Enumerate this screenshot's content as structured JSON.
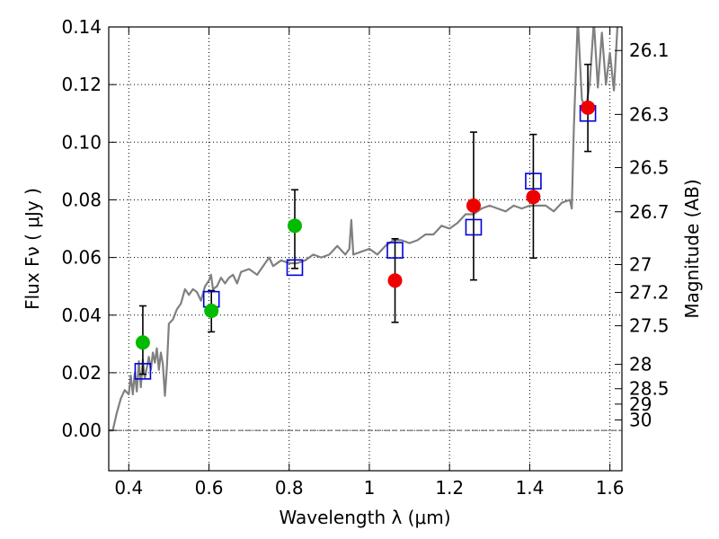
{
  "chart_data": {
    "type": "scatter",
    "xlabel": "Wavelength  λ (μm)",
    "ylabel": "Flux  Fν  ( μJy )",
    "ylabel_right": "Magnitude (AB)",
    "xlim": [
      0.35,
      1.63
    ],
    "ylim": [
      -0.014,
      0.14
    ],
    "x_ticks": [
      0.4,
      0.6,
      0.8,
      1.0,
      1.2,
      1.4,
      1.6
    ],
    "x_tick_labels": [
      "0.4",
      "0.6",
      "0.8",
      "1",
      "1.2",
      "1.4",
      "1.6"
    ],
    "y_ticks": [
      0.0,
      0.02,
      0.04,
      0.06,
      0.08,
      0.1,
      0.12,
      0.14
    ],
    "y_tick_labels": [
      "0.00",
      "0.02",
      "0.04",
      "0.06",
      "0.08",
      "0.10",
      "0.12",
      "0.14"
    ],
    "right_ticks": [
      "26.1",
      "26.3",
      "26.5",
      "26.7",
      "27",
      "27.2",
      "27.5",
      "28",
      "28.5",
      "29",
      "30"
    ],
    "grid": true,
    "colors": {
      "model": "#808080",
      "green": "#00bb00",
      "red": "#ee0000",
      "square": "#0000dd",
      "errorbar": "#000000",
      "zero_line": "#555555"
    },
    "series": [
      {
        "name": "green-points",
        "marker": "circle",
        "color": "#00bb00",
        "x": [
          0.435,
          0.606,
          0.814
        ],
        "y": [
          0.0305,
          0.0415,
          0.071
        ]
      },
      {
        "name": "red-points",
        "marker": "circle",
        "color": "#ee0000",
        "x": [
          1.064,
          1.26,
          1.409,
          1.545
        ],
        "y": [
          0.052,
          0.078,
          0.081,
          0.112
        ]
      },
      {
        "name": "model-squares",
        "marker": "square",
        "color": "#0000dd",
        "x": [
          0.435,
          0.606,
          0.814,
          1.064,
          1.26,
          1.409,
          1.545
        ],
        "y": [
          0.0205,
          0.0455,
          0.0565,
          0.0625,
          0.0705,
          0.0865,
          0.11
        ]
      }
    ],
    "error_bars": [
      {
        "x": 0.435,
        "low": 0.0195,
        "high": 0.0432
      },
      {
        "x": 0.606,
        "low": 0.0342,
        "high": 0.0485
      },
      {
        "x": 0.814,
        "low": 0.0562,
        "high": 0.0835
      },
      {
        "x": 1.064,
        "low": 0.0375,
        "high": 0.0665
      },
      {
        "x": 1.26,
        "low": 0.0522,
        "high": 0.1035
      },
      {
        "x": 1.409,
        "low": 0.0598,
        "high": 0.1027
      },
      {
        "x": 1.545,
        "low": 0.0968,
        "high": 0.127
      }
    ],
    "model_spectrum": {
      "x": [
        0.35,
        0.36,
        0.37,
        0.38,
        0.39,
        0.4,
        0.405,
        0.41,
        0.415,
        0.42,
        0.425,
        0.43,
        0.435,
        0.44,
        0.45,
        0.455,
        0.46,
        0.465,
        0.47,
        0.475,
        0.48,
        0.485,
        0.49,
        0.495,
        0.5,
        0.51,
        0.52,
        0.53,
        0.54,
        0.55,
        0.56,
        0.57,
        0.58,
        0.59,
        0.6,
        0.605,
        0.61,
        0.62,
        0.63,
        0.64,
        0.65,
        0.66,
        0.67,
        0.68,
        0.7,
        0.72,
        0.74,
        0.75,
        0.76,
        0.78,
        0.8,
        0.82,
        0.84,
        0.86,
        0.88,
        0.9,
        0.92,
        0.94,
        0.95,
        0.955,
        0.96,
        0.98,
        1.0,
        1.02,
        1.04,
        1.06,
        1.08,
        1.1,
        1.12,
        1.14,
        1.16,
        1.18,
        1.2,
        1.22,
        1.24,
        1.26,
        1.28,
        1.3,
        1.32,
        1.34,
        1.36,
        1.38,
        1.4,
        1.42,
        1.44,
        1.46,
        1.48,
        1.5,
        1.505,
        1.51,
        1.52,
        1.53,
        1.54,
        1.55,
        1.56,
        1.57,
        1.58,
        1.59,
        1.6,
        1.61,
        1.62
      ],
      "y": [
        0.0,
        0.0,
        0.006,
        0.011,
        0.014,
        0.0125,
        0.019,
        0.0125,
        0.02,
        0.0135,
        0.024,
        0.015,
        0.0245,
        0.018,
        0.0255,
        0.021,
        0.027,
        0.0235,
        0.0285,
        0.021,
        0.027,
        0.023,
        0.012,
        0.022,
        0.037,
        0.0385,
        0.042,
        0.044,
        0.049,
        0.047,
        0.049,
        0.048,
        0.045,
        0.05,
        0.052,
        0.054,
        0.049,
        0.05,
        0.053,
        0.051,
        0.053,
        0.054,
        0.051,
        0.055,
        0.056,
        0.054,
        0.058,
        0.06,
        0.057,
        0.059,
        0.058,
        0.058,
        0.059,
        0.061,
        0.06,
        0.061,
        0.064,
        0.061,
        0.063,
        0.073,
        0.061,
        0.062,
        0.063,
        0.061,
        0.064,
        0.066,
        0.066,
        0.065,
        0.066,
        0.068,
        0.068,
        0.071,
        0.07,
        0.072,
        0.075,
        0.075,
        0.077,
        0.078,
        0.077,
        0.076,
        0.078,
        0.077,
        0.078,
        0.078,
        0.078,
        0.076,
        0.079,
        0.08,
        0.077,
        0.105,
        0.143,
        0.115,
        0.111,
        0.121,
        0.142,
        0.119,
        0.138,
        0.12,
        0.131,
        0.118,
        0.143
      ]
    }
  }
}
